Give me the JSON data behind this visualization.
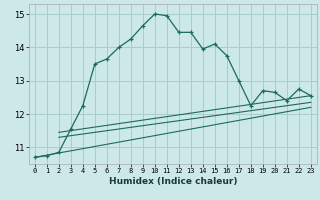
{
  "xlabel": "Humidex (Indice chaleur)",
  "bg_color": "#cde8e8",
  "grid_color": "#aacccc",
  "line_color": "#1a6b5a",
  "xlim": [
    -0.5,
    23.5
  ],
  "ylim": [
    10.5,
    15.3
  ],
  "yticks": [
    11,
    12,
    13,
    14,
    15
  ],
  "xticks": [
    0,
    1,
    2,
    3,
    4,
    5,
    6,
    7,
    8,
    9,
    10,
    11,
    12,
    13,
    14,
    15,
    16,
    17,
    18,
    19,
    20,
    21,
    22,
    23
  ],
  "main_x": [
    0,
    1,
    2,
    3,
    4,
    5,
    6,
    7,
    8,
    9,
    10,
    11,
    12,
    13,
    14,
    15,
    16,
    17,
    18,
    19,
    20,
    21,
    22,
    23
  ],
  "main_y": [
    10.7,
    10.75,
    10.85,
    11.55,
    12.25,
    13.5,
    13.65,
    14.0,
    14.25,
    14.65,
    15.0,
    14.95,
    14.45,
    14.45,
    13.95,
    14.1,
    13.75,
    13.0,
    12.25,
    12.7,
    12.65,
    12.4,
    12.75,
    12.55
  ],
  "line2_x": [
    2,
    23
  ],
  "line2_y": [
    11.45,
    12.55
  ],
  "line3_x": [
    2,
    23
  ],
  "line3_y": [
    11.3,
    12.35
  ],
  "line4_x": [
    0,
    23
  ],
  "line4_y": [
    10.7,
    12.2
  ]
}
